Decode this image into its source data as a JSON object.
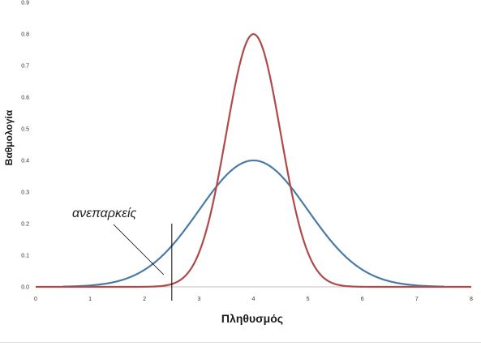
{
  "chart_data": {
    "type": "line",
    "xlabel": "Πληθυσμός",
    "ylabel": "Βαθμολογία",
    "xlim": [
      0,
      8
    ],
    "ylim": [
      0,
      0.9
    ],
    "x_ticks": [
      "0",
      "1",
      "2",
      "3",
      "4",
      "5",
      "6",
      "7",
      "8"
    ],
    "y_ticks": [
      "0.0",
      "0.1",
      "0.2",
      "0.3",
      "0.4",
      "0.5",
      "0.6",
      "0.7",
      "0.8",
      "0.9"
    ],
    "grid": false,
    "legend": "none",
    "series": [
      {
        "color": "#4a7ba6",
        "curve": "normal",
        "mean": 4,
        "sd": 1,
        "x_range": [
          0.5,
          7.5
        ],
        "peak": 0.4
      },
      {
        "color": "#b04a4a",
        "curve": "normal",
        "mean": 4,
        "sd": 0.5,
        "x_range": [
          0,
          8
        ],
        "peak": 0.8
      }
    ],
    "annotation": {
      "text": "ανεπαρκείς",
      "marker_x": 2.5
    }
  }
}
